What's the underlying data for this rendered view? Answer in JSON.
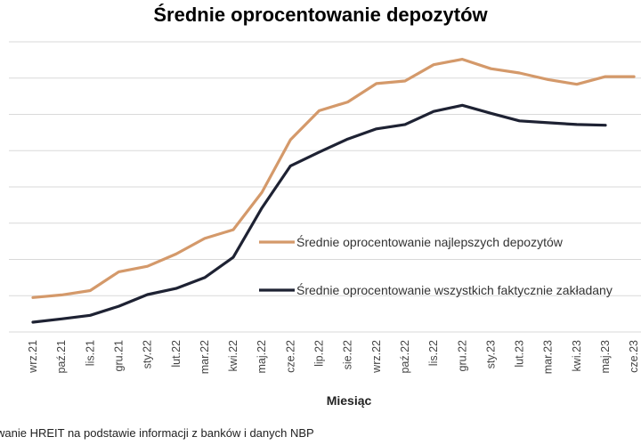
{
  "chart_data": {
    "type": "line",
    "title": "Średnie oprocentowanie depozytów",
    "xlabel": "Miesiąc",
    "ylabel": "",
    "categories": [
      "wrz.21",
      "paź.21",
      "lis.21",
      "gru.21",
      "sty.22",
      "lut.22",
      "mar.22",
      "kwi.22",
      "maj.22",
      "cze.22",
      "lip.22",
      "sie.22",
      "wrz.22",
      "paź.22",
      "lis.22",
      "gru.22",
      "sty.23",
      "lut.23",
      "mar.23",
      "kwi.23",
      "maj.23",
      "cze.23"
    ],
    "ylim": [
      0,
      8
    ],
    "grid": true,
    "legend_position": "right-center",
    "series": [
      {
        "name": "Średnie oprocentowanie najlepszych depozytów",
        "color": "#D4996A",
        "values": [
          0.95,
          1.02,
          1.14,
          1.66,
          1.81,
          2.15,
          2.58,
          2.82,
          3.85,
          5.3,
          6.1,
          6.34,
          6.85,
          6.92,
          7.37,
          7.52,
          7.26,
          7.14,
          6.96,
          6.83,
          7.04,
          7.04
        ]
      },
      {
        "name": "Średnie oprocentowanie wszystkich faktycznie zakładany",
        "color": "#1E2233",
        "values": [
          0.27,
          0.36,
          0.46,
          0.71,
          1.03,
          1.2,
          1.5,
          2.06,
          3.42,
          4.58,
          4.96,
          5.32,
          5.6,
          5.72,
          6.08,
          6.25,
          6.03,
          5.82,
          5.77,
          5.72,
          5.7,
          null
        ]
      }
    ]
  },
  "source_note": "wanie HREIT na podstawie informacji z banków i danych NBP"
}
